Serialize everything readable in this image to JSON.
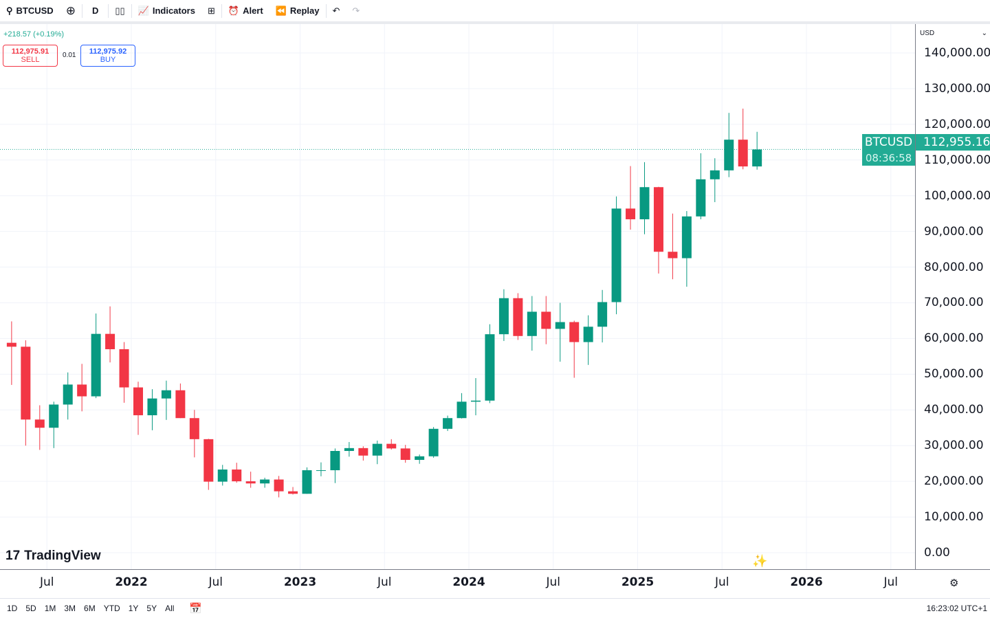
{
  "toolbar": {
    "symbol": "BTCUSD",
    "interval": "D",
    "indicators": "Indicators",
    "alert": "Alert",
    "replay": "Replay"
  },
  "legend": {
    "change": "+218.57 (+0.19%)",
    "sell_price": "112,975.91",
    "sell_label": "SELL",
    "spread": "0.01",
    "buy_price": "112,975.92",
    "buy_label": "BUY"
  },
  "price_axis": {
    "currency": "USD",
    "last_symbol": "BTCUSD",
    "last_price": "112,955.16",
    "countdown": "08:36:58"
  },
  "watermark": "TradingView",
  "bottom": {
    "ranges": [
      "1D",
      "5D",
      "1M",
      "3M",
      "6M",
      "YTD",
      "1Y",
      "5Y",
      "All"
    ],
    "clock": "16:23:02 UTC+1"
  },
  "colors": {
    "up": "#089981",
    "down": "#f23645",
    "accent": "#22ab94"
  },
  "chart_data": {
    "type": "candlestick",
    "symbol": "BTCUSD",
    "ylim": [
      0,
      140000
    ],
    "grid": true,
    "y_ticks": [
      "0.00",
      "10,000.00",
      "20,000.00",
      "30,000.00",
      "40,000.00",
      "50,000.00",
      "60,000.00",
      "70,000.00",
      "80,000.00",
      "90,000.00",
      "100,000.00",
      "110,000.00",
      "120,000.00",
      "130,000.00",
      "140,000.00"
    ],
    "x_ticks": [
      {
        "label": "Jul",
        "date": "2021-07"
      },
      {
        "label": "2022",
        "date": "2022-01"
      },
      {
        "label": "Jul",
        "date": "2022-07"
      },
      {
        "label": "2023",
        "date": "2023-01"
      },
      {
        "label": "Jul",
        "date": "2023-07"
      },
      {
        "label": "2024",
        "date": "2024-01"
      },
      {
        "label": "Jul",
        "date": "2024-07"
      },
      {
        "label": "2025",
        "date": "2025-01"
      },
      {
        "label": "Jul",
        "date": "2025-07"
      },
      {
        "label": "2026",
        "date": "2026-01"
      },
      {
        "label": "Jul",
        "date": "2026-07"
      }
    ],
    "ohlc_columns": [
      "date",
      "open",
      "high",
      "low",
      "close"
    ],
    "ohlc": [
      [
        "2021-04",
        58800,
        64800,
        47000,
        57700
      ],
      [
        "2021-05",
        57700,
        59500,
        30000,
        37300
      ],
      [
        "2021-06",
        37300,
        41300,
        28800,
        35000
      ],
      [
        "2021-07",
        35000,
        42300,
        29300,
        41500
      ],
      [
        "2021-08",
        41500,
        50500,
        37300,
        47100
      ],
      [
        "2021-09",
        47100,
        52900,
        39600,
        43800
      ],
      [
        "2021-10",
        43800,
        67000,
        43300,
        61300
      ],
      [
        "2021-11",
        61300,
        69000,
        53300,
        57000
      ],
      [
        "2021-12",
        57000,
        59000,
        42000,
        46300
      ],
      [
        "2022-01",
        46300,
        47900,
        33000,
        38500
      ],
      [
        "2022-02",
        38500,
        45800,
        34300,
        43200
      ],
      [
        "2022-03",
        43200,
        48200,
        37200,
        45500
      ],
      [
        "2022-04",
        45500,
        47400,
        37700,
        37700
      ],
      [
        "2022-05",
        37700,
        40000,
        26700,
        31800
      ],
      [
        "2022-06",
        31800,
        31900,
        17600,
        19900
      ],
      [
        "2022-07",
        19900,
        24600,
        18800,
        23300
      ],
      [
        "2022-08",
        23300,
        25200,
        19600,
        20000
      ],
      [
        "2022-09",
        20000,
        22700,
        18200,
        19400
      ],
      [
        "2022-10",
        19400,
        21000,
        18200,
        20500
      ],
      [
        "2022-11",
        20500,
        21500,
        15500,
        17200
      ],
      [
        "2022-12",
        17200,
        18400,
        16300,
        16500
      ],
      [
        "2023-01",
        16500,
        23900,
        16500,
        23100
      ],
      [
        "2023-02",
        23100,
        25300,
        21400,
        23100
      ],
      [
        "2023-03",
        23100,
        29200,
        19500,
        28500
      ],
      [
        "2023-04",
        28500,
        31000,
        26900,
        29300
      ],
      [
        "2023-05",
        29300,
        29800,
        25800,
        27200
      ],
      [
        "2023-06",
        27200,
        31400,
        24800,
        30500
      ],
      [
        "2023-07",
        30500,
        31800,
        28900,
        29200
      ],
      [
        "2023-08",
        29200,
        30200,
        25200,
        26000
      ],
      [
        "2023-09",
        26000,
        27500,
        24900,
        27000
      ],
      [
        "2023-10",
        27000,
        35200,
        26600,
        34700
      ],
      [
        "2023-11",
        34700,
        38400,
        34100,
        37700
      ],
      [
        "2023-12",
        37700,
        44700,
        37600,
        42300
      ],
      [
        "2024-01",
        42300,
        48900,
        38500,
        42600
      ],
      [
        "2024-02",
        42600,
        64000,
        41900,
        61200
      ],
      [
        "2024-03",
        61200,
        73800,
        59300,
        71300
      ],
      [
        "2024-04",
        71300,
        72700,
        59600,
        60700
      ],
      [
        "2024-05",
        60700,
        71900,
        56600,
        67500
      ],
      [
        "2024-06",
        67500,
        71900,
        58400,
        62700
      ],
      [
        "2024-07",
        62700,
        70000,
        53500,
        64600
      ],
      [
        "2024-08",
        64600,
        65000,
        49000,
        59000
      ],
      [
        "2024-09",
        59000,
        66500,
        52600,
        63300
      ],
      [
        "2024-10",
        63300,
        73600,
        58900,
        70200
      ],
      [
        "2024-11",
        70200,
        99800,
        66800,
        96400
      ],
      [
        "2024-12",
        96400,
        108300,
        90500,
        93400
      ],
      [
        "2025-01",
        93400,
        109400,
        89200,
        102400
      ],
      [
        "2025-02",
        102400,
        102500,
        78200,
        84300
      ],
      [
        "2025-03",
        84300,
        95000,
        76600,
        82500
      ],
      [
        "2025-04",
        82500,
        95700,
        74500,
        94200
      ],
      [
        "2025-05",
        94200,
        111900,
        93400,
        104600
      ],
      [
        "2025-06",
        104600,
        110500,
        98200,
        107100
      ],
      [
        "2025-07",
        107100,
        123200,
        105200,
        115700
      ],
      [
        "2025-08",
        115700,
        124400,
        107400,
        108200
      ],
      [
        "2025-09",
        108200,
        117900,
        107300,
        112955.16
      ]
    ],
    "last_price": 112955.16
  }
}
